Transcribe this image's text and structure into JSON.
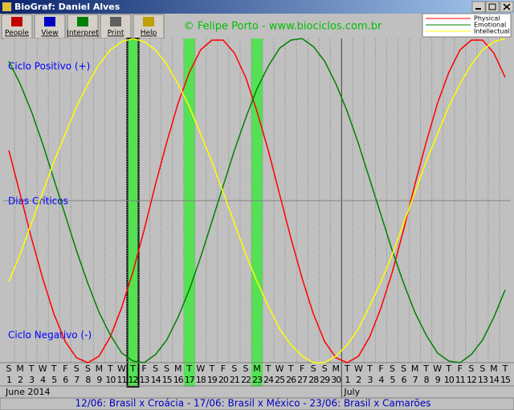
{
  "window": {
    "title": "BioGraf: Daniel Alves"
  },
  "toolbar": {
    "buttons": [
      "People",
      "View",
      "Interpret",
      "Print",
      "Help"
    ]
  },
  "credit": "© Felipe Porto - www.biociclos.com.br",
  "status": "12/06: Brasil x Croácia - 17/06: Brasil x México - 23/06: Brasil x Camarões",
  "chart_data": {
    "type": "line",
    "axis_labels": {
      "positive": "Ciclo Positivo (+)",
      "critical": "Dias Críticos",
      "negative": "Ciclo Negativo (-)"
    },
    "weekdays": [
      "S",
      "M",
      "T",
      "W",
      "T",
      "F",
      "S",
      "S",
      "M",
      "T",
      "W",
      "T",
      "F",
      "S",
      "S",
      "M",
      "T",
      "W",
      "T",
      "F",
      "S",
      "S",
      "M",
      "T",
      "W",
      "T",
      "F",
      "S",
      "S",
      "M",
      "T",
      "W",
      "T",
      "F",
      "S",
      "S",
      "M",
      "T",
      "W",
      "T",
      "F",
      "S",
      "S",
      "M",
      "T"
    ],
    "categories": [
      "1",
      "2",
      "3",
      "4",
      "5",
      "6",
      "7",
      "8",
      "9",
      "10",
      "11",
      "12",
      "13",
      "14",
      "15",
      "16",
      "17",
      "18",
      "19",
      "20",
      "21",
      "22",
      "23",
      "24",
      "25",
      "26",
      "27",
      "28",
      "29",
      "30",
      "1",
      "2",
      "3",
      "4",
      "5",
      "6",
      "7",
      "8",
      "9",
      "10",
      "11",
      "12",
      "13",
      "14",
      "15"
    ],
    "months": [
      {
        "label": "June 2014",
        "start": 0
      },
      {
        "label": "July",
        "start": 30
      }
    ],
    "highlights": [
      11,
      16,
      22
    ],
    "ylim": [
      -100,
      100
    ],
    "series": [
      {
        "name": "Physical",
        "color": "#ff0000",
        "values": [
          31,
          4,
          -23,
          -48,
          -70,
          -87,
          -97,
          -100,
          -96,
          -84,
          -66,
          -44,
          -18,
          10,
          36,
          60,
          79,
          93,
          99,
          99,
          91,
          76,
          55,
          31,
          4,
          -23,
          -48,
          -70,
          -87,
          -97,
          -100,
          -96,
          -84,
          -66,
          -44,
          -18,
          10,
          36,
          60,
          79,
          93,
          99,
          99,
          91,
          76
        ]
      },
      {
        "name": "Emotional",
        "color": "#008000",
        "values": [
          86,
          72,
          55,
          35,
          13,
          -9,
          -31,
          -51,
          -69,
          -83,
          -94,
          -99,
          -100,
          -95,
          -86,
          -72,
          -55,
          -35,
          -13,
          9,
          31,
          51,
          69,
          83,
          94,
          99,
          100,
          95,
          86,
          72,
          55,
          35,
          13,
          -9,
          -31,
          -51,
          -69,
          -83,
          -94,
          -99,
          -100,
          -95,
          -86,
          -72,
          -55
        ]
      },
      {
        "name": "Intellectual",
        "color": "#ffff00",
        "values": [
          -50,
          -33,
          -14,
          5,
          24,
          41,
          58,
          72,
          84,
          93,
          98,
          100,
          98,
          93,
          84,
          72,
          58,
          41,
          24,
          5,
          -14,
          -33,
          -50,
          -65,
          -79,
          -89,
          -96,
          -100,
          -100,
          -96,
          -89,
          -79,
          -65,
          -50,
          -33,
          -14,
          5,
          24,
          41,
          58,
          72,
          84,
          93,
          98,
          100
        ]
      }
    ]
  }
}
